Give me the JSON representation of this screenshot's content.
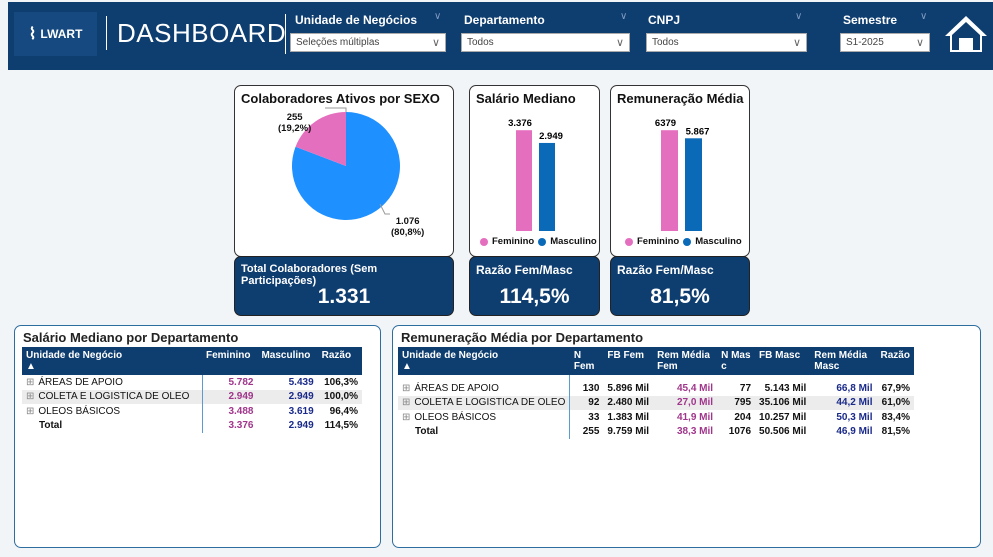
{
  "header": {
    "logo_text": "LWART",
    "title": "DASHBOARD",
    "filters": [
      {
        "label": "Unidade de Negócios",
        "value": "Seleções múltiplas"
      },
      {
        "label": "Departamento",
        "value": "Todos"
      },
      {
        "label": "CNPJ",
        "value": "Todos"
      },
      {
        "label": "Semestre",
        "value": "S1-2025"
      }
    ],
    "home_icon": "home-icon"
  },
  "colors": {
    "feminino": "#e56fbf",
    "masculino": "#1e90ff",
    "bar_masc": "#0a6ab8",
    "header": "#0e3d70"
  },
  "pie": {
    "title": "Colaboradores Ativos por SEXO",
    "female_value": "255",
    "female_pct": "(19,2%)",
    "male_value": "1.076",
    "male_pct": "(80,8%)",
    "female_fraction": 0.192
  },
  "salario_mediano": {
    "title": "Salário Mediano",
    "fem": "3.376",
    "masc": "2.949",
    "fem_num": 3376,
    "masc_num": 2949,
    "legend": [
      "Feminino",
      "Masculino"
    ]
  },
  "remuneracao_media": {
    "title": "Remuneração Média",
    "fem": "6379",
    "masc": "5.867",
    "fem_num": 6379,
    "masc_num": 5867,
    "legend": [
      "Feminino",
      "Masculino"
    ]
  },
  "kpis": [
    {
      "title": "Total Colaboradores (Sem Participações)",
      "value": "1.331"
    },
    {
      "title": "Razão Fem/Masc",
      "value": "114,5%"
    },
    {
      "title": "Razão Fem/Masc",
      "value": "81,5%"
    }
  ],
  "table1": {
    "title": "Salário Mediano por Departamento",
    "headers": [
      "Unidade de Negócio",
      "Feminino",
      "Masculino",
      "Razão"
    ],
    "rows": [
      [
        "ÁREAS DE APOIO",
        "5.782",
        "5.439",
        "106,3%"
      ],
      [
        "COLETA E LOGISTICA DE OLEO",
        "2.949",
        "2.949",
        "100,0%"
      ],
      [
        "OLEOS BÁSICOS",
        "3.488",
        "3.619",
        "96,4%"
      ]
    ],
    "total": [
      "Total",
      "3.376",
      "2.949",
      "114,5%"
    ]
  },
  "table2": {
    "title": "Remuneração Média por Departamento",
    "headers": [
      "Unidade de Negócio",
      "N Fem",
      "FB Fem",
      "Rem Média Fem",
      "N Mas c",
      "FB Masc",
      "Rem Média Masc",
      "Razão"
    ],
    "rows": [
      [
        "ÁREAS DE APOIO",
        "130",
        "5.896 Mil",
        "45,4 Mil",
        "77",
        "5.143 Mil",
        "66,8 Mil",
        "67,9%"
      ],
      [
        "COLETA E LOGISTICA DE OLEO",
        "92",
        "2.480 Mil",
        "27,0 Mil",
        "795",
        "35.106 Mil",
        "44,2 Mil",
        "61,0%"
      ],
      [
        "OLEOS BÁSICOS",
        "33",
        "1.383 Mil",
        "41,9 Mil",
        "204",
        "10.257 Mil",
        "50,3 Mil",
        "83,4%"
      ]
    ],
    "total": [
      "Total",
      "255",
      "9.759 Mil",
      "38,3 Mil",
      "1076",
      "50.506 Mil",
      "46,9 Mil",
      "81,5%"
    ]
  }
}
